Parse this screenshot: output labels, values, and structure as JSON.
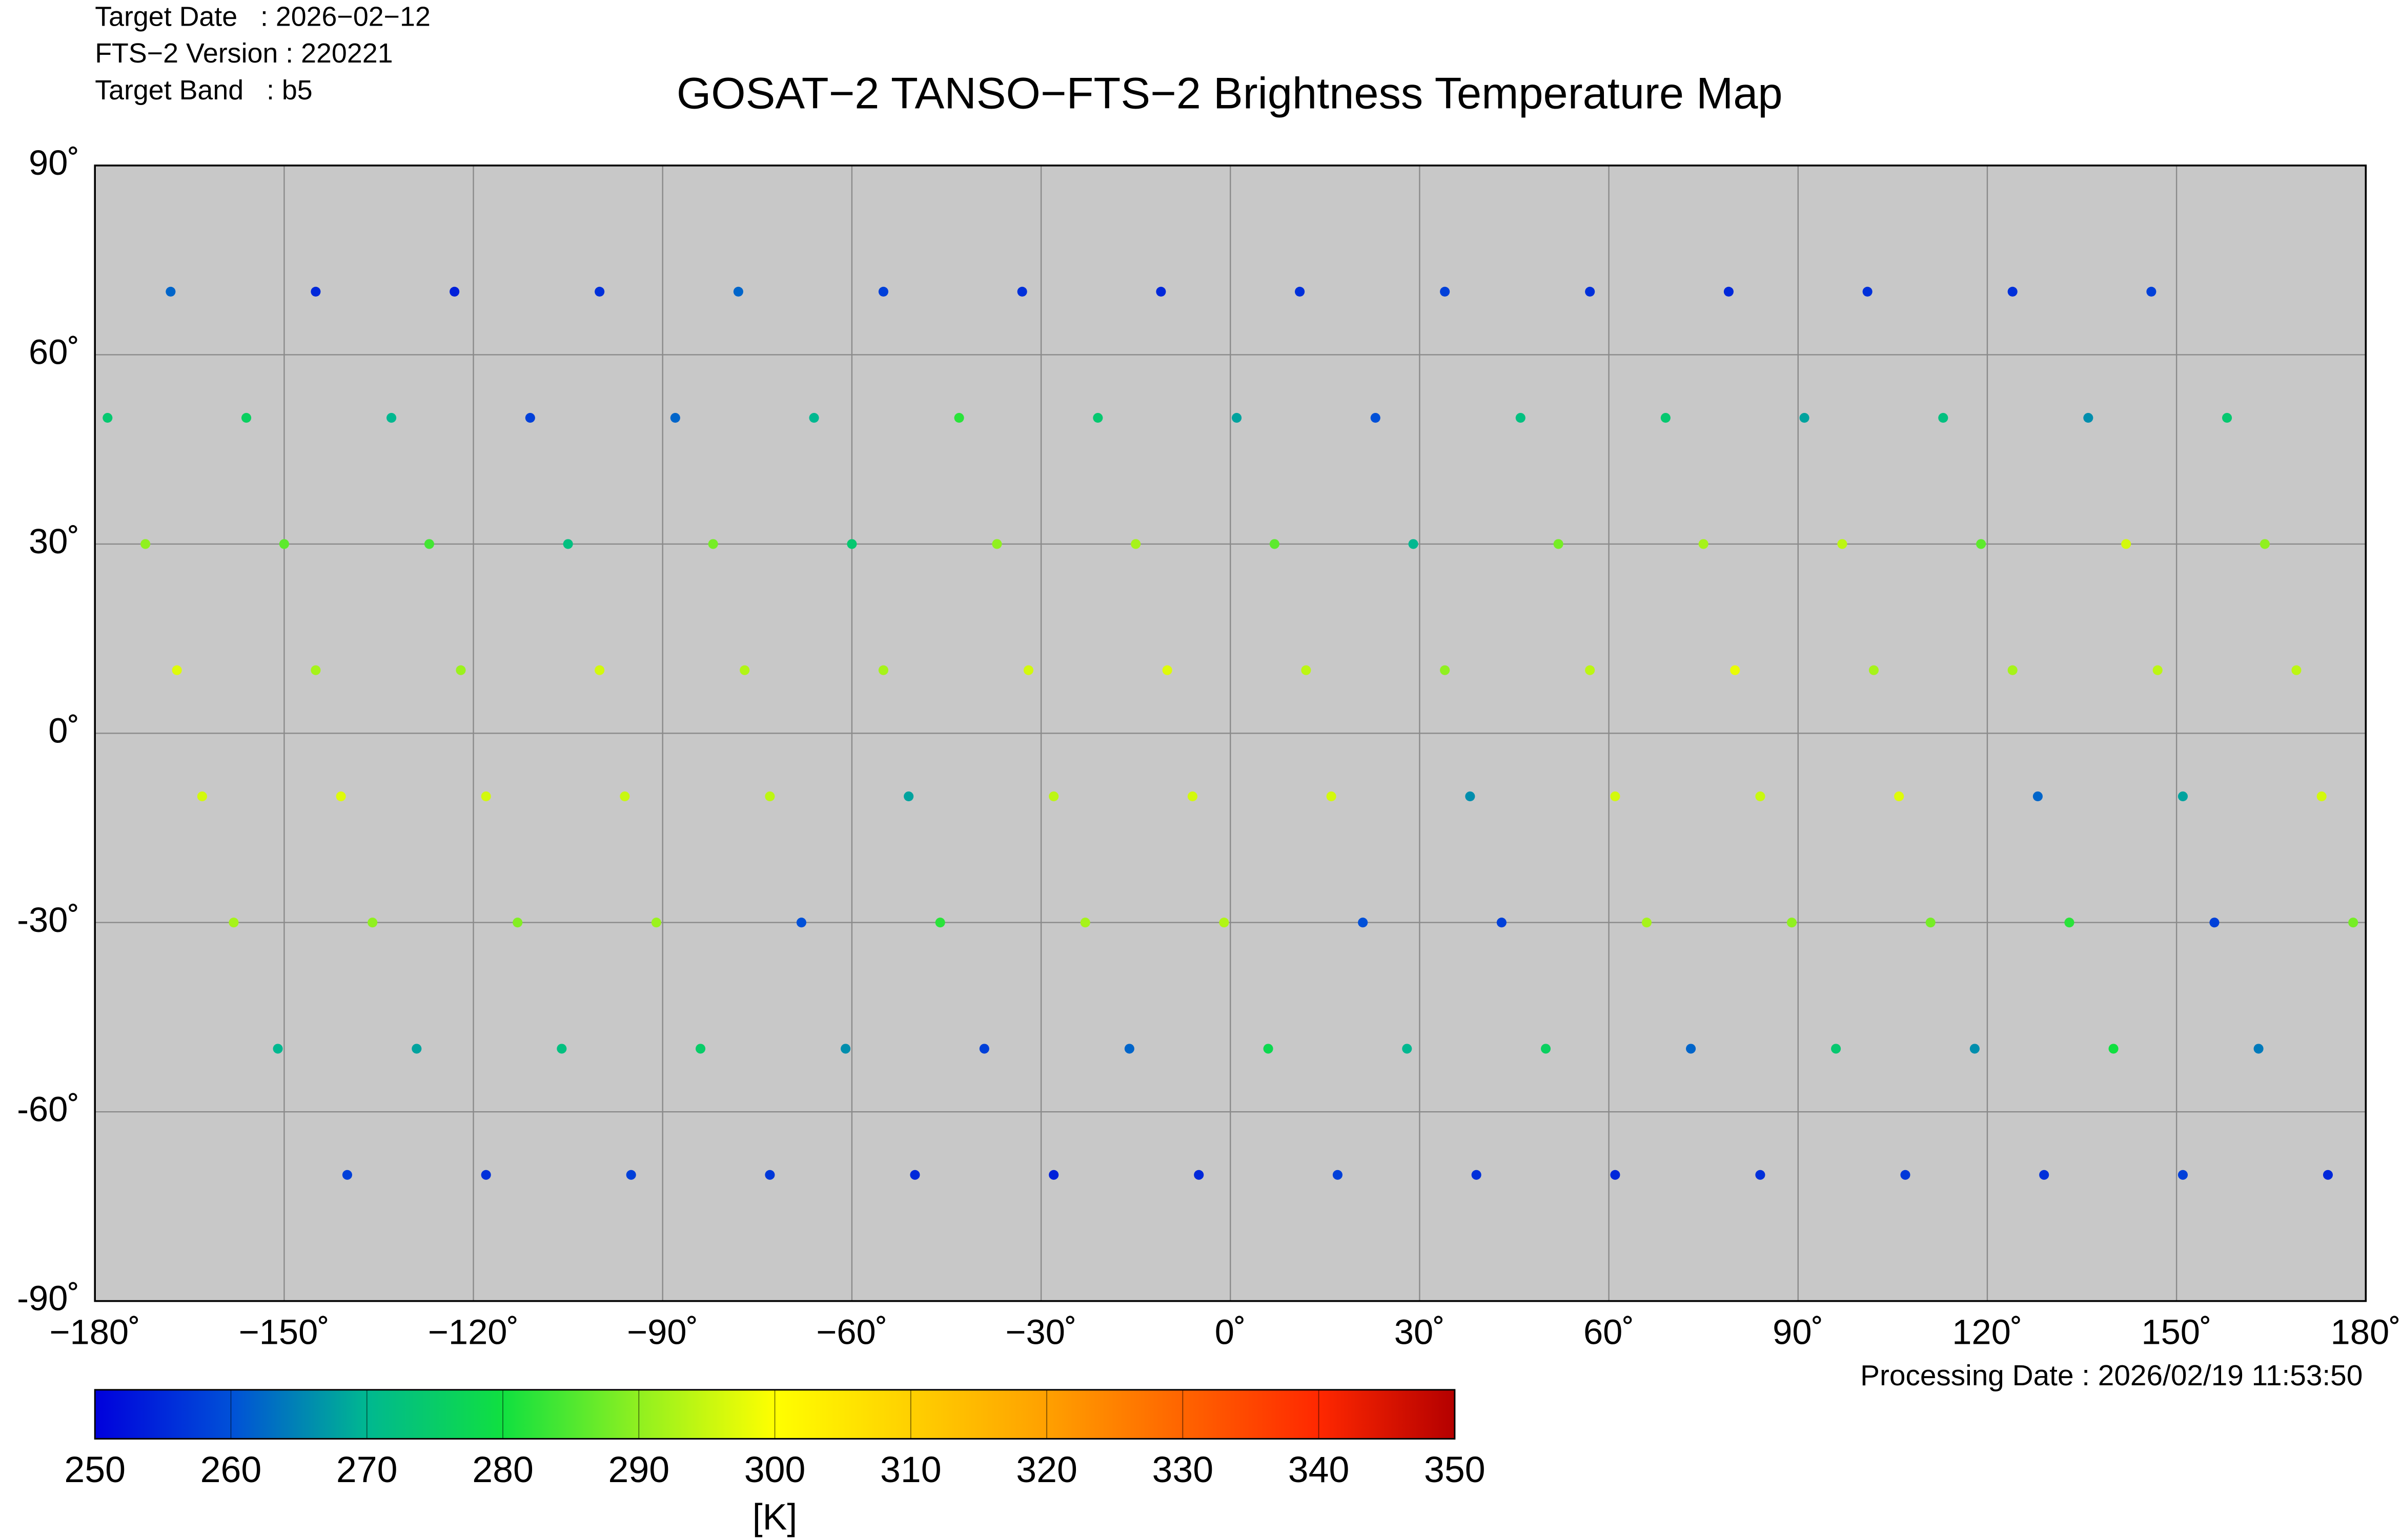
{
  "chart_data": {
    "type": "scatter",
    "title": "GOSAT−2 TANSO−FTS−2 Brightness Temperature Map",
    "annotations": [
      "Target Date   : 2026−02−12",
      "FTS−2 Version : 220221",
      "Target Band   : b5",
      "Processing Date : 2026/02/19 11:53:50"
    ],
    "xlim": [
      -180,
      180
    ],
    "xticks": [
      {
        "value": -180,
        "label": "−180˚"
      },
      {
        "value": -150,
        "label": "−150˚"
      },
      {
        "value": -120,
        "label": "−120˚"
      },
      {
        "value": -90,
        "label": "−90˚"
      },
      {
        "value": -60,
        "label": "−60˚"
      },
      {
        "value": -30,
        "label": "−30˚"
      },
      {
        "value": 0,
        "label": "0˚"
      },
      {
        "value": 30,
        "label": "30˚"
      },
      {
        "value": 60,
        "label": "60˚"
      },
      {
        "value": 90,
        "label": "90˚"
      },
      {
        "value": 120,
        "label": "120˚"
      },
      {
        "value": 150,
        "label": "150˚"
      },
      {
        "value": 180,
        "label": "180˚"
      }
    ],
    "ylim": [
      -90,
      90
    ],
    "yticks": [
      {
        "value": -90,
        "label": "-90˚"
      },
      {
        "value": -60,
        "label": "-60˚"
      },
      {
        "value": -30,
        "label": "-30˚"
      },
      {
        "value": 0,
        "label": "0˚"
      },
      {
        "value": 30,
        "label": "30˚"
      },
      {
        "value": 60,
        "label": "60˚"
      },
      {
        "value": 90,
        "label": "90˚"
      }
    ],
    "grid": true,
    "background": "#c8c8c8",
    "colorbar": {
      "label": "[K]",
      "lim": [
        250,
        350
      ],
      "ticks": [
        250,
        260,
        270,
        280,
        290,
        300,
        310,
        320,
        330,
        340,
        350
      ],
      "colors": [
        "#0000dc",
        "#0050d8",
        "#00b890",
        "#10e040",
        "#90f020",
        "#ffff00",
        "#ffd000",
        "#ffa000",
        "#ff6400",
        "#ff2800",
        "#b40000"
      ]
    },
    "x": [
      -178,
      -172,
      -167,
      -163,
      -158,
      -151,
      -140,
      -168,
      -156,
      -150,
      -145,
      -141,
      -136,
      -129,
      -118,
      -145,
      -133,
      -127,
      -122,
      -118,
      -113,
      -106,
      -95,
      -123,
      -111,
      -105,
      -100,
      -96,
      -91,
      -84,
      -73,
      -100,
      -88,
      -82,
      -77,
      -73,
      -68,
      -61,
      -50,
      -78,
      -66,
      -60,
      -55,
      -51,
      -46,
      -39,
      -28,
      -55,
      -43,
      -37,
      -32,
      -28,
      -23,
      -16,
      -5,
      -33,
      -21,
      -15,
      -10,
      -6,
      -1,
      6,
      17,
      -11,
      1,
      7,
      12,
      16,
      21,
      28,
      39,
      11,
      23,
      29,
      34,
      38,
      43,
      50,
      61,
      34,
      46,
      52,
      57,
      61,
      66,
      73,
      84,
      57,
      69,
      75,
      80,
      84,
      89,
      96,
      107,
      79,
      91,
      97,
      102,
      106,
      111,
      118,
      129,
      101,
      113,
      119,
      124,
      128,
      133,
      140,
      151,
      124,
      136,
      142,
      147,
      151,
      156,
      163,
      174,
      146,
      158,
      164,
      169,
      173,
      178
    ],
    "y": [
      50,
      30,
      10,
      -10,
      -30,
      -50,
      -70,
      70,
      50,
      30,
      10,
      -10,
      -30,
      -50,
      -70,
      70,
      50,
      30,
      10,
      -10,
      -30,
      -50,
      -70,
      70,
      50,
      30,
      10,
      -10,
      -30,
      -50,
      -70,
      70,
      50,
      30,
      10,
      -10,
      -30,
      -50,
      -70,
      70,
      50,
      30,
      10,
      -10,
      -30,
      -50,
      -70,
      70,
      50,
      30,
      10,
      -10,
      -30,
      -50,
      -70,
      70,
      50,
      30,
      10,
      -10,
      -30,
      -50,
      -70,
      70,
      50,
      30,
      10,
      -10,
      -30,
      -50,
      -70,
      70,
      50,
      30,
      10,
      -10,
      -30,
      -50,
      -70,
      70,
      50,
      30,
      10,
      -10,
      -30,
      -50,
      -70,
      70,
      50,
      30,
      10,
      -10,
      -30,
      -50,
      -70,
      70,
      50,
      30,
      10,
      -10,
      -30,
      -50,
      -70,
      70,
      50,
      30,
      10,
      -10,
      -30,
      -50,
      -70,
      70,
      50,
      30,
      10,
      -10,
      -30,
      -50,
      -70,
      70,
      50,
      30,
      10,
      -10,
      -30
    ],
    "values": [
      274,
      290,
      297,
      296,
      292,
      270,
      258,
      262,
      276,
      286,
      292,
      297,
      290,
      268,
      256,
      255,
      270,
      284,
      291,
      296,
      289,
      272,
      258,
      254,
      258,
      272,
      296,
      295,
      291,
      275,
      257,
      256,
      262,
      288,
      293,
      294,
      260,
      266,
      255,
      262,
      270,
      274,
      292,
      268,
      282,
      258,
      254,
      258,
      282,
      290,
      296,
      294,
      292,
      262,
      255,
      256,
      274,
      292,
      297,
      296,
      293,
      278,
      258,
      255,
      268,
      286,
      294,
      296,
      260,
      270,
      256,
      256,
      260,
      270,
      290,
      266,
      258,
      276,
      255,
      258,
      272,
      288,
      294,
      296,
      292,
      262,
      256,
      256,
      274,
      292,
      298,
      295,
      290,
      274,
      257,
      255,
      268,
      294,
      292,
      297,
      288,
      266,
      256,
      256,
      272,
      286,
      292,
      262,
      282,
      280,
      258,
      256,
      266,
      296,
      294,
      268,
      258,
      264,
      255,
      258,
      274,
      290,
      294,
      296,
      288
    ]
  }
}
